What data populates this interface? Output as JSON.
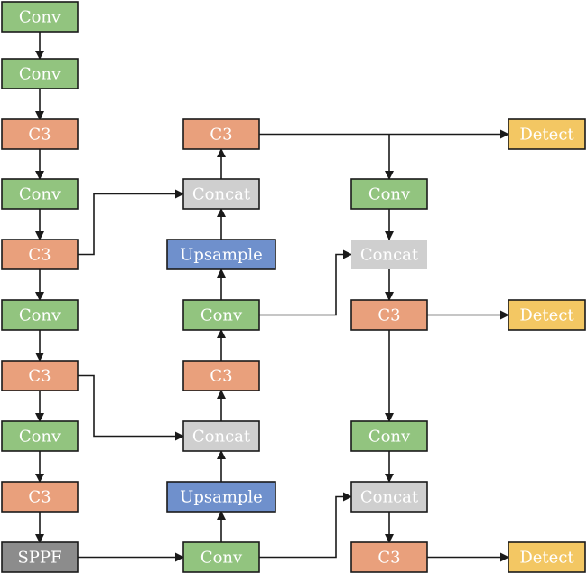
{
  "colors": {
    "Conv": "#92c47f",
    "C3": "#e9a07c",
    "Concat": "#cfcfcf",
    "Upsample": "#6f90cc",
    "SPPF": "#8c8c8c",
    "Detect": "#f3c763",
    "edge": "#1a1a1a"
  },
  "nodes": [
    {
      "id": "b0",
      "label": "Conv",
      "type": "Conv"
    },
    {
      "id": "b1",
      "label": "Conv",
      "type": "Conv"
    },
    {
      "id": "b2",
      "label": "C3",
      "type": "C3"
    },
    {
      "id": "b3",
      "label": "Conv",
      "type": "Conv"
    },
    {
      "id": "b4",
      "label": "C3",
      "type": "C3"
    },
    {
      "id": "b5",
      "label": "Conv",
      "type": "Conv"
    },
    {
      "id": "b6",
      "label": "C3",
      "type": "C3"
    },
    {
      "id": "b7",
      "label": "Conv",
      "type": "Conv"
    },
    {
      "id": "b8",
      "label": "C3",
      "type": "C3"
    },
    {
      "id": "b9",
      "label": "SPPF",
      "type": "SPPF"
    },
    {
      "id": "n0",
      "label": "C3",
      "type": "C3"
    },
    {
      "id": "n1",
      "label": "Concat",
      "type": "Concat"
    },
    {
      "id": "n2",
      "label": "Upsample",
      "type": "Upsample"
    },
    {
      "id": "n3",
      "label": "Conv",
      "type": "Conv"
    },
    {
      "id": "n4",
      "label": "C3",
      "type": "C3"
    },
    {
      "id": "n5",
      "label": "Concat",
      "type": "Concat"
    },
    {
      "id": "n6",
      "label": "Upsample",
      "type": "Upsample"
    },
    {
      "id": "n7",
      "label": "Conv",
      "type": "Conv"
    },
    {
      "id": "h0",
      "label": "Conv",
      "type": "Conv"
    },
    {
      "id": "h1",
      "label": "Concat",
      "type": "Concat",
      "noBorder": true
    },
    {
      "id": "h2",
      "label": "C3",
      "type": "C3"
    },
    {
      "id": "h3",
      "label": "Conv",
      "type": "Conv"
    },
    {
      "id": "h4",
      "label": "Concat",
      "type": "Concat"
    },
    {
      "id": "h5",
      "label": "C3",
      "type": "C3"
    },
    {
      "id": "d0",
      "label": "Detect",
      "type": "Detect"
    },
    {
      "id": "d1",
      "label": "Detect",
      "type": "Detect"
    },
    {
      "id": "d2",
      "label": "Detect",
      "type": "Detect"
    }
  ],
  "edges": [
    [
      "b0",
      "b1"
    ],
    [
      "b1",
      "b2"
    ],
    [
      "b2",
      "b3"
    ],
    [
      "b3",
      "b4"
    ],
    [
      "b4",
      "b5"
    ],
    [
      "b5",
      "b6"
    ],
    [
      "b6",
      "b7"
    ],
    [
      "b7",
      "b8"
    ],
    [
      "b8",
      "b9"
    ],
    [
      "b9",
      "n7"
    ],
    [
      "n7",
      "n6"
    ],
    [
      "n6",
      "n5"
    ],
    [
      "n5",
      "n4"
    ],
    [
      "n4",
      "n3"
    ],
    [
      "n3",
      "n2"
    ],
    [
      "n2",
      "n1"
    ],
    [
      "n1",
      "n0"
    ],
    [
      "b4",
      "n1"
    ],
    [
      "b6",
      "n5"
    ],
    [
      "n0",
      "d0"
    ],
    [
      "n0",
      "h0"
    ],
    [
      "h0",
      "h1"
    ],
    [
      "h1",
      "h2"
    ],
    [
      "h2",
      "d1"
    ],
    [
      "h2",
      "h3"
    ],
    [
      "h3",
      "h4"
    ],
    [
      "h4",
      "h5"
    ],
    [
      "h5",
      "d2"
    ],
    [
      "n3",
      "h1"
    ],
    [
      "n7",
      "h4"
    ]
  ]
}
